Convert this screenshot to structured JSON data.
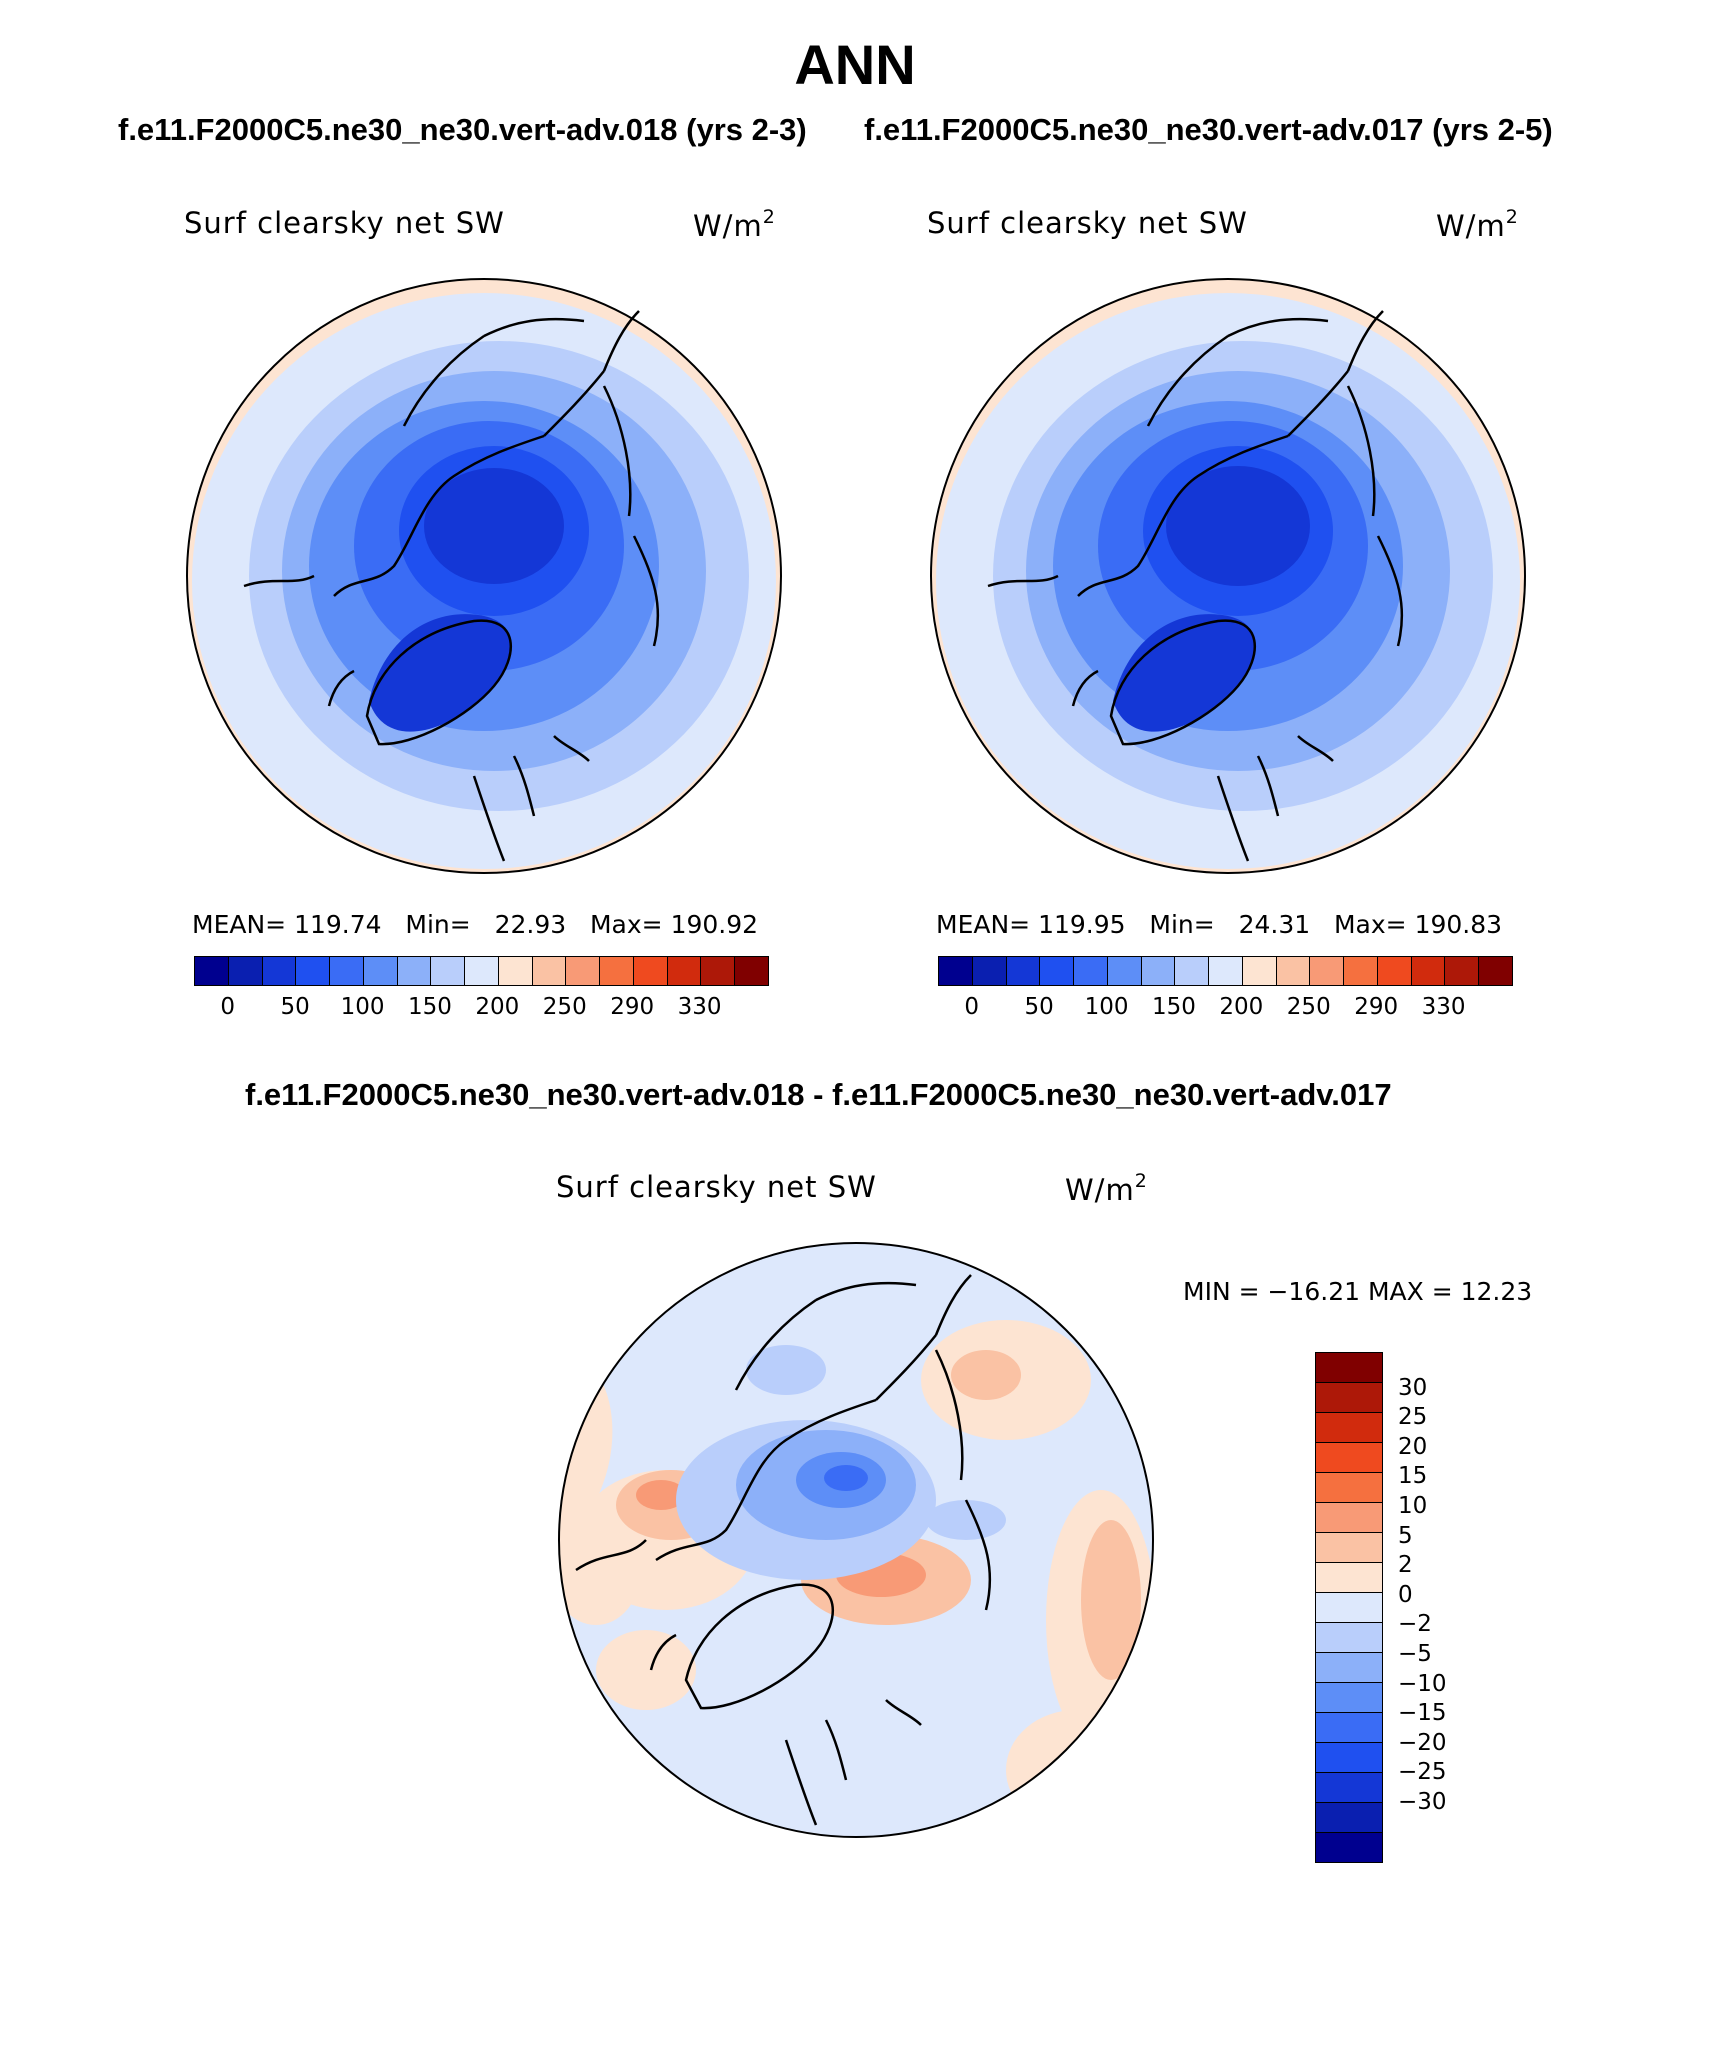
{
  "title": "ANN",
  "case_titles": {
    "left": "f.e11.F2000C5.ne30_ne30.vert-adv.018 (yrs 2-3)",
    "right": "f.e11.F2000C5.ne30_ne30.vert-adv.017 (yrs 2-5)",
    "diff": "f.e11.F2000C5.ne30_ne30.vert-adv.018 - f.e11.F2000C5.ne30_ne30.vert-adv.017"
  },
  "panels": [
    {
      "id": "case1",
      "variable": "Surf clearsky net SW",
      "units": "W/m",
      "units_exp": "2",
      "mean_label": "MEAN=",
      "mean": "119.74",
      "min_label": "Min=",
      "min": "22.93",
      "max_label": "Max=",
      "max": "190.92"
    },
    {
      "id": "case2",
      "variable": "Surf clearsky net SW",
      "units": "W/m",
      "units_exp": "2",
      "mean_label": "MEAN=",
      "mean": "119.95",
      "min_label": "Min=",
      "min": "24.31",
      "max_label": "Max=",
      "max": "190.83"
    }
  ],
  "diff_panel": {
    "variable": "Surf clearsky net SW",
    "units": "W/m",
    "units_exp": "2",
    "minmax": "MIN = −16.21 MAX =   12.23"
  },
  "colorbar_case": {
    "tick_labels": [
      "0",
      "50",
      "100",
      "150",
      "200",
      "250",
      "290",
      "330"
    ],
    "colors": [
      "#00008f",
      "#0a1fb0",
      "#1437d6",
      "#1f50f0",
      "#3a6cf5",
      "#5d8ef7",
      "#8cb0f9",
      "#b9cefb",
      "#dde8fc",
      "#fde4d2",
      "#fac2a4",
      "#f89a76",
      "#f5703f",
      "#ef4a1f",
      "#d12b0d",
      "#ad1808",
      "#800000"
    ]
  },
  "colorbar_diff": {
    "tick_labels": [
      "30",
      "25",
      "20",
      "15",
      "10",
      "5",
      "2",
      "0",
      "−2",
      "−5",
      "−10",
      "−15",
      "−20",
      "−25",
      "−30"
    ],
    "colors": [
      "#800000",
      "#ad1808",
      "#d12b0d",
      "#ef4a1f",
      "#f5703f",
      "#f89a76",
      "#fac2a4",
      "#fde4d2",
      "#dde8fc",
      "#b9cefb",
      "#8cb0f9",
      "#5d8ef7",
      "#3a6cf5",
      "#1f50f0",
      "#1437d6",
      "#0a1fb0",
      "#00008f"
    ]
  }
}
